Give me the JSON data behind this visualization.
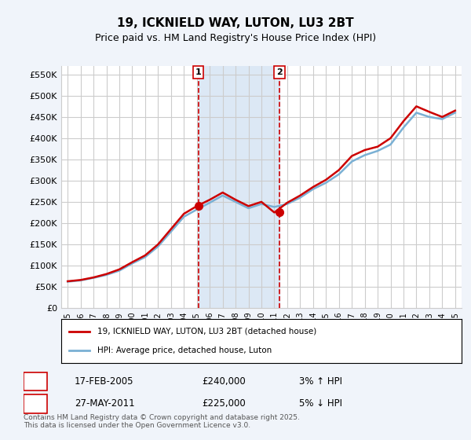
{
  "title": "19, ICKNIELD WAY, LUTON, LU3 2BT",
  "subtitle": "Price paid vs. HM Land Registry's House Price Index (HPI)",
  "ylabel_ticks": [
    "£0",
    "£50K",
    "£100K",
    "£150K",
    "£200K",
    "£250K",
    "£300K",
    "£350K",
    "£400K",
    "£450K",
    "£500K",
    "£550K"
  ],
  "ytick_values": [
    0,
    50000,
    100000,
    150000,
    200000,
    250000,
    300000,
    350000,
    400000,
    450000,
    500000,
    550000
  ],
  "ylim": [
    0,
    570000
  ],
  "x_start_year": 1995,
  "x_end_year": 2025,
  "transaction1": {
    "date": 2005.12,
    "price": 240000,
    "label": "1",
    "info": "17-FEB-2005",
    "amount": "£240,000",
    "pct": "3% ↑ HPI"
  },
  "transaction2": {
    "date": 2011.4,
    "price": 225000,
    "label": "2",
    "info": "27-MAY-2011",
    "amount": "£225,000",
    "pct": "5% ↓ HPI"
  },
  "bg_color": "#f0f4fa",
  "plot_bg_color": "#ffffff",
  "grid_color": "#cccccc",
  "red_line_color": "#cc0000",
  "blue_line_color": "#7ab0d4",
  "dashed_line_color": "#cc0000",
  "highlight_fill": "#dce8f5",
  "legend_label1": "19, ICKNIELD WAY, LUTON, LU3 2BT (detached house)",
  "legend_label2": "HPI: Average price, detached house, Luton",
  "footer": "Contains HM Land Registry data © Crown copyright and database right 2025.\nThis data is licensed under the Open Government Licence v3.0.",
  "hpi_years": [
    1995,
    1996,
    1997,
    1998,
    1999,
    2000,
    2001,
    2002,
    2003,
    2004,
    2005,
    2006,
    2007,
    2008,
    2009,
    2010,
    2011,
    2012,
    2013,
    2014,
    2015,
    2016,
    2017,
    2018,
    2019,
    2020,
    2021,
    2022,
    2023,
    2024,
    2025
  ],
  "hpi_values": [
    62000,
    65000,
    71000,
    78000,
    88000,
    105000,
    120000,
    145000,
    180000,
    215000,
    232000,
    248000,
    265000,
    250000,
    235000,
    245000,
    238000,
    245000,
    260000,
    280000,
    295000,
    315000,
    345000,
    360000,
    370000,
    385000,
    425000,
    460000,
    450000,
    445000,
    460000
  ],
  "red_years": [
    1995,
    1996,
    1997,
    1998,
    1999,
    2000,
    2001,
    2002,
    2003,
    2004,
    2005,
    2006,
    2007,
    2008,
    2009,
    2010,
    2011,
    2012,
    2013,
    2014,
    2015,
    2016,
    2017,
    2018,
    2019,
    2020,
    2021,
    2022,
    2023,
    2024,
    2025
  ],
  "red_values": [
    63000,
    66000,
    72000,
    80000,
    91000,
    108000,
    124000,
    150000,
    186000,
    222000,
    240000,
    255000,
    272000,
    255000,
    240000,
    250000,
    225000,
    248000,
    265000,
    285000,
    302000,
    325000,
    358000,
    372000,
    380000,
    400000,
    440000,
    475000,
    462000,
    450000,
    465000
  ]
}
